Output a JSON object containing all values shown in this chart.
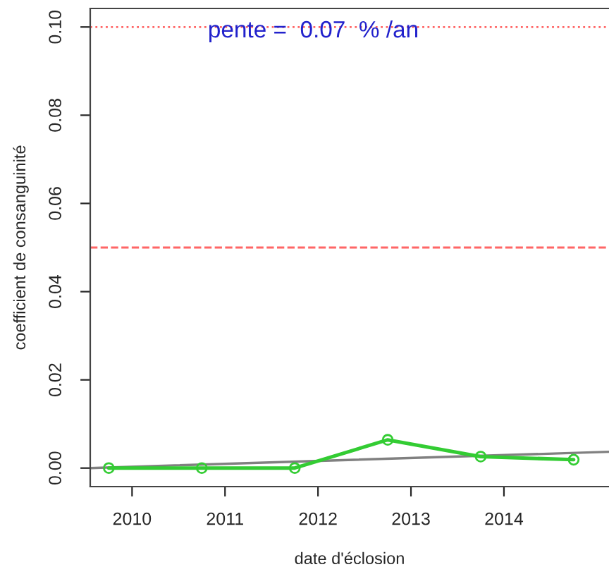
{
  "chart_data": {
    "type": "line",
    "xlabel": "date d'éclosion",
    "ylabel": "coefficient de consanguinité",
    "xlim": [
      2009.55,
      2015.13
    ],
    "xticks": [
      2010,
      2011,
      2012,
      2013,
      2014
    ],
    "ylim": [
      -0.0042,
      0.1042
    ],
    "yticks": [
      {
        "value": 0,
        "label": "0.00"
      },
      0.02,
      0.04,
      0.06,
      0.08,
      {
        "value": 0.1,
        "label": "0.10"
      }
    ],
    "grid": false,
    "legend": false,
    "series": [
      {
        "type": "line",
        "color": "#808080",
        "marker": "none",
        "x": [
          2009.55,
          2015.13
        ],
        "values": [
          0.0,
          0.0037
        ]
      },
      {
        "color": "#33cc33",
        "marker": "circle",
        "x": [
          2009.75,
          2010.75,
          2011.75,
          2012.75,
          2013.75,
          2014.75
        ],
        "values": [
          0.0,
          0.0,
          0.0,
          0.0064,
          0.0026,
          0.0019
        ]
      }
    ],
    "ref_lines": [
      {
        "axis": "y",
        "value": 0.1,
        "color": "#ff6666",
        "line_style": "dotted"
      },
      {
        "axis": "y",
        "value": 0.05,
        "color": "#ff6666",
        "line_style": "dashed"
      }
    ],
    "annotations": [
      "pente =  0.07  % /an"
    ]
  }
}
